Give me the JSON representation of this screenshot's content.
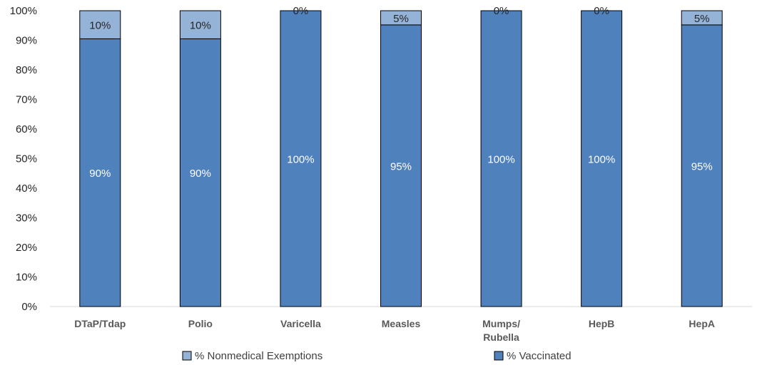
{
  "chart_data": {
    "type": "bar",
    "stacked": true,
    "percent": true,
    "title": "",
    "xlabel": "",
    "ylabel": "",
    "ylim": [
      0,
      100
    ],
    "yticks": [
      "0%",
      "10%",
      "20%",
      "30%",
      "40%",
      "50%",
      "60%",
      "70%",
      "80%",
      "90%",
      "100%"
    ],
    "categories": [
      "DTaP/Tdap",
      "Polio",
      "Varicella",
      "Measles",
      "Mumps/\nRubella",
      "HepB",
      "HepA"
    ],
    "series": [
      {
        "name": "% Vaccinated",
        "color": "#4f81bd",
        "values": [
          90.5,
          90.5,
          100,
          95.2,
          100,
          100,
          95.2
        ],
        "labels": [
          "90%",
          "90%",
          "100%",
          "95%",
          "100%",
          "100%",
          "95%"
        ]
      },
      {
        "name": "% Nonmedical Exemptions",
        "color": "#95b3d7",
        "values": [
          9.5,
          9.5,
          0,
          4.8,
          0,
          0,
          4.8
        ],
        "labels": [
          "10%",
          "10%",
          "0%",
          "5%",
          "0%",
          "0%",
          "5%"
        ]
      }
    ],
    "legend": {
      "position": "bottom",
      "entries": [
        "% Nonmedical Exemptions",
        "% Vaccinated"
      ]
    },
    "grid": false
  }
}
